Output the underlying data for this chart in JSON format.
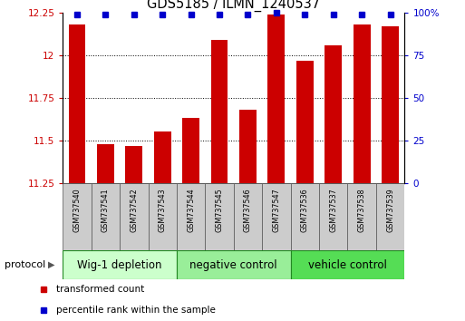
{
  "title": "GDS5185 / ILMN_1240537",
  "samples": [
    "GSM737540",
    "GSM737541",
    "GSM737542",
    "GSM737543",
    "GSM737544",
    "GSM737545",
    "GSM737546",
    "GSM737547",
    "GSM737536",
    "GSM737537",
    "GSM737538",
    "GSM737539"
  ],
  "transformed_counts": [
    12.18,
    11.48,
    11.47,
    11.55,
    11.63,
    12.09,
    11.68,
    12.24,
    11.97,
    12.06,
    12.18,
    12.17
  ],
  "percentile_ranks": [
    99,
    99,
    99,
    99,
    99,
    99,
    99,
    100,
    99,
    99,
    99,
    99
  ],
  "groups": [
    {
      "label": "Wig-1 depletion",
      "start": 0,
      "end": 4,
      "color": "#ccffcc"
    },
    {
      "label": "negative control",
      "start": 4,
      "end": 8,
      "color": "#99ee99"
    },
    {
      "label": "vehicle control",
      "start": 8,
      "end": 12,
      "color": "#55dd55"
    }
  ],
  "ylim_left": [
    11.25,
    12.25
  ],
  "ylim_right": [
    0,
    100
  ],
  "yticks_left": [
    11.25,
    11.5,
    11.75,
    12.0,
    12.25
  ],
  "yticks_right": [
    0,
    25,
    50,
    75,
    100
  ],
  "ytick_labels_left": [
    "11.25",
    "11.5",
    "11.75",
    "12",
    "12.25"
  ],
  "ytick_labels_right": [
    "0",
    "25",
    "50",
    "75",
    "100%"
  ],
  "grid_lines": [
    11.5,
    11.75,
    12.0
  ],
  "bar_color": "#cc0000",
  "marker_color": "#0000cc",
  "bar_width": 0.6,
  "bar_bottom": 11.25,
  "protocol_label": "protocol",
  "legend_items": [
    {
      "color": "#cc0000",
      "label": "transformed count"
    },
    {
      "color": "#0000cc",
      "label": "percentile rank within the sample"
    }
  ],
  "tick_label_fontsize": 7.5,
  "title_fontsize": 10.5,
  "sample_fontsize": 5.8,
  "group_fontsize": 8.5,
  "legend_fontsize": 7.5
}
